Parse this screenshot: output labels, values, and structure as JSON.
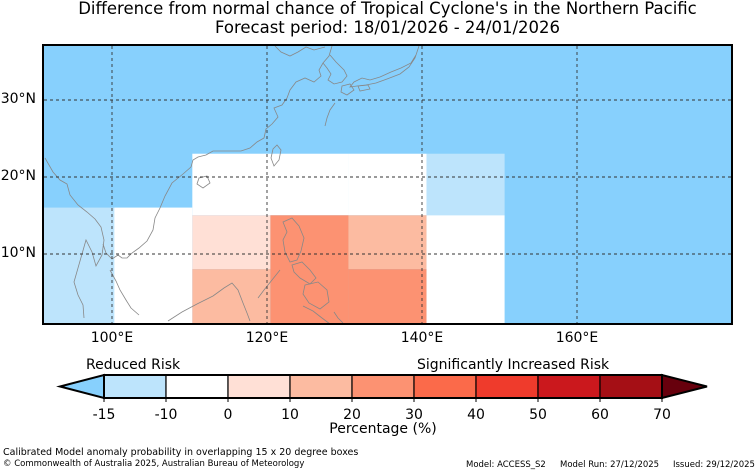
{
  "header": {
    "title": "Difference from normal chance of Tropical Cyclone's in the Northern Pacific",
    "subtitle": "Forecast period: 18/01/2026 - 24/01/2026"
  },
  "map": {
    "region": "Northern Pacific",
    "lon_range": [
      91,
      179
    ],
    "lat_range": [
      1,
      37
    ],
    "lat_labels": [
      "30°N",
      "20°N",
      "10°N"
    ],
    "lon_labels": [
      "100°E",
      "120°E",
      "140°E",
      "160°E"
    ],
    "colors": {
      "ocean_default": "#87d0fd",
      "land_outline": "#888888",
      "gridline": "#333333"
    },
    "anomaly_boxes": [
      {
        "lon": [
          110,
          130
        ],
        "lat": [
          15,
          23
        ],
        "value_band": "0 to 10",
        "color": "#ffffff"
      },
      {
        "lon": [
          130,
          140
        ],
        "lat": [
          15,
          23
        ],
        "value_band": "0 to 10",
        "color": "#ffffff"
      },
      {
        "lon": [
          140,
          150
        ],
        "lat": [
          15,
          23
        ],
        "value_band": "-10 to -15",
        "color": "#bde4fc"
      },
      {
        "lon": [
          91,
          100
        ],
        "lat": [
          1,
          16
        ],
        "value_band": "-10 to -15",
        "color": "#bde4fc"
      },
      {
        "lon": [
          100,
          110
        ],
        "lat": [
          1,
          16
        ],
        "value_band": "-10 to 0",
        "color": "#ffffff"
      },
      {
        "lon": [
          110,
          120
        ],
        "lat": [
          8,
          15
        ],
        "value_band": "0 to 10",
        "color": "#ffe0d6"
      },
      {
        "lon": [
          110,
          120
        ],
        "lat": [
          1,
          8
        ],
        "value_band": "10 to 20",
        "color": "#fcbba1"
      },
      {
        "lon": [
          120,
          130
        ],
        "lat": [
          1,
          15
        ],
        "value_band": "20 to 30",
        "color": "#fc9272"
      },
      {
        "lon": [
          130,
          140
        ],
        "lat": [
          8,
          15
        ],
        "value_band": "10 to 20",
        "color": "#fcbba1"
      },
      {
        "lon": [
          130,
          140
        ],
        "lat": [
          1,
          8
        ],
        "value_band": "20 to 30",
        "color": "#fc9272"
      },
      {
        "lon": [
          140,
          150
        ],
        "lat": [
          1,
          15
        ],
        "value_band": "-10 to 0",
        "color": "#ffffff"
      }
    ]
  },
  "colorbar": {
    "reduced_label": "Reduced Risk",
    "increased_label": "Significantly Increased Risk",
    "label": "Percentage (%)",
    "ticks": [
      "-15",
      "-10",
      "0",
      "10",
      "20",
      "30",
      "40",
      "50",
      "60",
      "70"
    ],
    "colors": [
      "#87d0fd",
      "#bde4fc",
      "#ffffff",
      "#ffe0d6",
      "#fcbba1",
      "#fc9272",
      "#fb6a4a",
      "#ef3b2c",
      "#cb181d",
      "#a50f15",
      "#67000d"
    ]
  },
  "footer": {
    "note": "Calibrated Model anomaly probability in overlapping 15 x 20 degree boxes",
    "copyright": "© Commonwealth of Australia 2025, Australian Bureau of Meteorology",
    "model": "Model: ACCESS_S2",
    "model_run": "Model Run: 27/12/2025",
    "issued": "Issued: 29/12/2025"
  }
}
